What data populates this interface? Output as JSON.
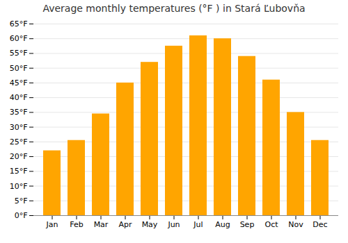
{
  "chart_data": {
    "type": "bar",
    "title": "Average monthly temperatures (°F ) in Stará Ľubovňa",
    "categories": [
      "Jan",
      "Feb",
      "Mar",
      "Apr",
      "May",
      "Jun",
      "Jul",
      "Aug",
      "Sep",
      "Oct",
      "Nov",
      "Dec"
    ],
    "values": [
      22,
      25.5,
      34.5,
      45,
      52,
      57.5,
      61,
      60,
      54,
      46,
      35,
      25.5
    ],
    "color": "#FFA500",
    "ylim": [
      0,
      65
    ],
    "yticks": [
      {
        "value": 0,
        "label": "0°F"
      },
      {
        "value": 5,
        "label": "5°F"
      },
      {
        "value": 10,
        "label": "10°F"
      },
      {
        "value": 15,
        "label": "15°F"
      },
      {
        "value": 20,
        "label": "20°F"
      },
      {
        "value": 25,
        "label": "25°F"
      },
      {
        "value": 30,
        "label": "30°F"
      },
      {
        "value": 35,
        "label": "35°F"
      },
      {
        "value": 40,
        "label": "40°F"
      },
      {
        "value": 45,
        "label": "45°F"
      },
      {
        "value": 50,
        "label": "50°F"
      },
      {
        "value": 55,
        "label": "55°F"
      },
      {
        "value": 60,
        "label": "60°F"
      },
      {
        "value": 65,
        "label": "65°F"
      }
    ],
    "grid": true
  }
}
